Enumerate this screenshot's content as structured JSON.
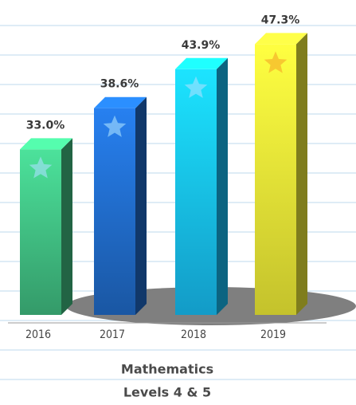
{
  "chart_data": {
    "type": "bar3d",
    "categories": [
      "2016",
      "2017",
      "2018",
      "2019"
    ],
    "values": [
      33.0,
      38.6,
      43.9,
      47.3
    ],
    "value_labels": [
      "33.0%",
      "38.6%",
      "43.9%",
      "47.3%"
    ],
    "colors": [
      "#3db57c",
      "#1f66c0",
      "#16b6ea",
      "#e6e434"
    ],
    "title": "Mathematics",
    "subtitle": "Levels 4 & 5"
  }
}
